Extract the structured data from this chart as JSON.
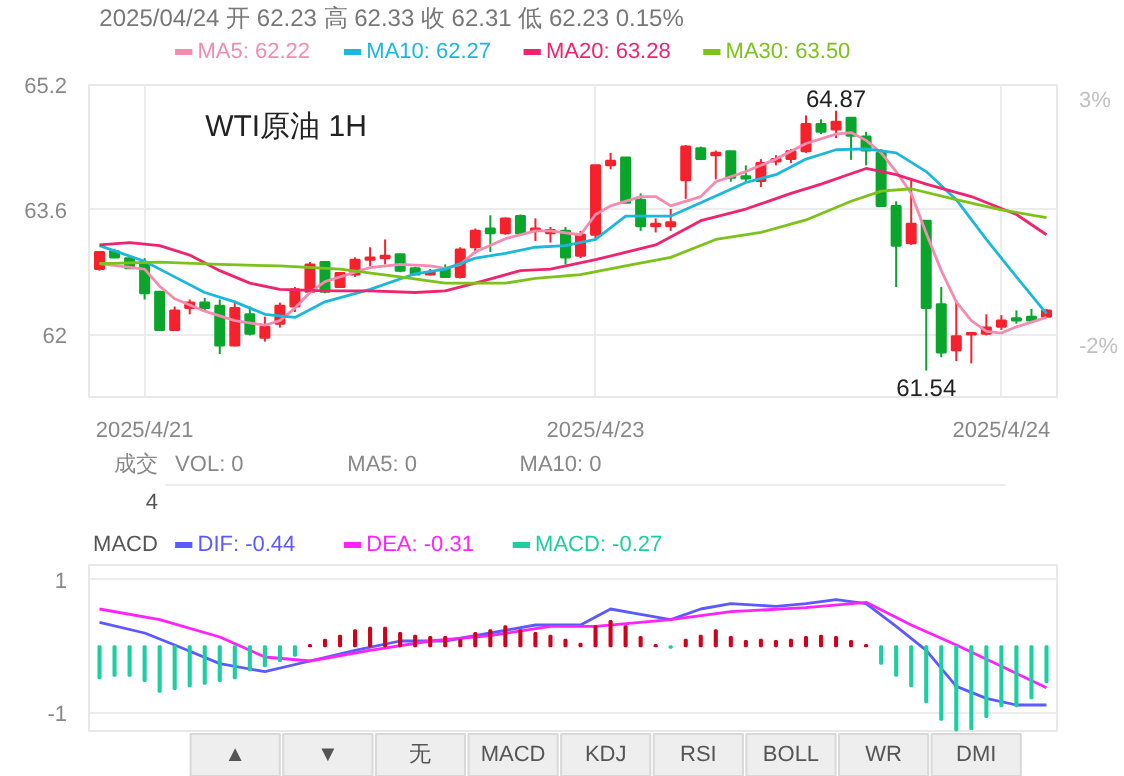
{
  "chart_data": [
    {
      "type": "candlestick",
      "title": "WTI原油 1H",
      "annotations": [
        "2025/04/24 开 62.23 高 62.33 收 62.31 低 62.23 0.15%",
        {
          "text": "64.87",
          "y": 64.87
        },
        {
          "text": "61.54",
          "y": 61.54
        }
      ],
      "categories": [
        null,
        null,
        null,
        "2025/4/21",
        null,
        null,
        null,
        null,
        null,
        null,
        null,
        null,
        null,
        null,
        null,
        null,
        null,
        null,
        null,
        null,
        null,
        null,
        null,
        null,
        null,
        null,
        null,
        null,
        null,
        null,
        null,
        null,
        null,
        "2025/4/23",
        null,
        null,
        null,
        null,
        null,
        null,
        null,
        null,
        null,
        null,
        null,
        null,
        null,
        null,
        null,
        null,
        null,
        null,
        null,
        null,
        null,
        null,
        null,
        null,
        null,
        null,
        "2025/4/24",
        null,
        null,
        null
      ],
      "ohlc": [
        [
          62.84,
          63.07,
          62.82,
          63.06
        ],
        [
          63.07,
          63.1,
          62.98,
          62.99
        ],
        [
          62.98,
          62.99,
          62.84,
          62.85
        ],
        [
          62.93,
          62.98,
          62.45,
          62.53
        ],
        [
          62.55,
          62.56,
          62.06,
          62.06
        ],
        [
          62.06,
          62.36,
          62.06,
          62.31
        ],
        [
          62.34,
          62.45,
          62.26,
          62.41
        ],
        [
          62.41,
          62.47,
          62.29,
          62.34
        ],
        [
          62.37,
          62.45,
          61.75,
          61.86
        ],
        [
          61.86,
          62.42,
          61.85,
          62.34
        ],
        [
          62.26,
          62.36,
          61.99,
          62.01
        ],
        [
          61.96,
          62.23,
          61.91,
          62.1
        ],
        [
          62.14,
          62.41,
          62.09,
          62.37
        ],
        [
          62.36,
          62.61,
          62.29,
          62.58
        ],
        [
          62.55,
          62.93,
          62.53,
          62.9
        ],
        [
          62.93,
          62.93,
          62.53,
          62.55
        ],
        [
          62.61,
          62.8,
          62.6,
          62.79
        ],
        [
          62.77,
          62.99,
          62.74,
          62.96
        ],
        [
          62.96,
          63.12,
          62.88,
          62.99
        ],
        [
          62.98,
          63.22,
          62.9,
          63.01
        ],
        [
          63.03,
          63.04,
          62.8,
          62.82
        ],
        [
          62.85,
          62.87,
          62.76,
          62.77
        ],
        [
          62.77,
          62.84,
          62.76,
          62.8
        ],
        [
          62.84,
          62.9,
          62.74,
          62.74
        ],
        [
          62.74,
          63.12,
          62.72,
          63.09
        ],
        [
          63.12,
          63.36,
          63.04,
          63.33
        ],
        [
          63.36,
          63.53,
          63.06,
          63.3
        ],
        [
          63.3,
          63.5,
          63.28,
          63.49
        ],
        [
          63.52,
          63.54,
          63.28,
          63.3
        ],
        [
          63.33,
          63.49,
          63.2,
          63.36
        ],
        [
          63.3,
          63.38,
          63.18,
          63.34
        ],
        [
          63.33,
          63.38,
          62.9,
          62.99
        ],
        [
          63.01,
          63.33,
          62.98,
          63.28
        ],
        [
          63.28,
          64.17,
          63.22,
          64.17
        ],
        [
          64.17,
          64.33,
          64.12,
          64.23
        ],
        [
          64.27,
          64.27,
          63.69,
          63.69
        ],
        [
          63.73,
          63.81,
          63.33,
          63.39
        ],
        [
          63.39,
          63.49,
          63.31,
          63.42
        ],
        [
          63.39,
          63.61,
          63.33,
          63.44
        ],
        [
          63.98,
          64.43,
          63.74,
          64.41
        ],
        [
          64.39,
          64.41,
          64.24,
          64.25
        ],
        [
          64.3,
          64.36,
          63.99,
          64.33
        ],
        [
          64.35,
          64.35,
          63.96,
          64.01
        ],
        [
          64.03,
          64.17,
          63.96,
          64.0
        ],
        [
          63.97,
          64.25,
          63.89,
          64.2
        ],
        [
          64.22,
          64.3,
          64.17,
          64.25
        ],
        [
          64.25,
          64.38,
          64.2,
          64.35
        ],
        [
          64.35,
          64.81,
          64.33,
          64.7
        ],
        [
          64.7,
          64.76,
          64.57,
          64.6
        ],
        [
          64.63,
          64.87,
          64.52,
          64.73
        ],
        [
          64.78,
          64.78,
          64.24,
          64.55
        ],
        [
          64.54,
          64.6,
          64.17,
          64.36
        ],
        [
          64.33,
          64.38,
          63.65,
          63.65
        ],
        [
          63.65,
          63.71,
          62.61,
          63.14
        ],
        [
          63.17,
          63.98,
          63.15,
          63.42
        ],
        [
          63.46,
          63.46,
          61.54,
          62.34
        ],
        [
          62.39,
          62.61,
          61.71,
          61.77
        ],
        [
          61.8,
          62.44,
          61.66,
          61.98
        ],
        [
          62.0,
          62.02,
          61.63,
          62.02
        ],
        [
          62.01,
          62.26,
          61.99,
          62.09
        ],
        [
          62.1,
          62.25,
          62.06,
          62.18
        ],
        [
          62.21,
          62.31,
          62.14,
          62.18
        ],
        [
          62.23,
          62.33,
          62.15,
          62.18
        ],
        [
          62.23,
          62.33,
          62.23,
          62.31
        ]
      ],
      "colors": [
        "#f5222d",
        "#0aa62c",
        "#0aa62c",
        "#0aa62c",
        "#0aa62c",
        "#f5222d",
        "#f5222d",
        "#0aa62c",
        "#0aa62c",
        "#f5222d",
        "#0aa62c",
        "#f5222d",
        "#f5222d",
        "#f5222d",
        "#f5222d",
        "#0aa62c",
        "#f5222d",
        "#f5222d",
        "#f5222d",
        "#f5222d",
        "#0aa62c",
        "#0aa62c",
        "#f5222d",
        "#0aa62c",
        "#f5222d",
        "#f5222d",
        "#0aa62c",
        "#f5222d",
        "#0aa62c",
        "#f5222d",
        "#f5222d",
        "#0aa62c",
        "#f5222d",
        "#f5222d",
        "#f5222d",
        "#0aa62c",
        "#0aa62c",
        "#f5222d",
        "#f5222d",
        "#f5222d",
        "#0aa62c",
        "#f5222d",
        "#0aa62c",
        "#0aa62c",
        "#f5222d",
        "#f5222d",
        "#f5222d",
        "#f5222d",
        "#0aa62c",
        "#f5222d",
        "#0aa62c",
        "#0aa62c",
        "#0aa62c",
        "#0aa62c",
        "#f5222d",
        "#0aa62c",
        "#0aa62c",
        "#f5222d",
        "#f5222d",
        "#f5222d",
        "#f5222d",
        "#0aa62c",
        "#0aa62c",
        "#f5222d"
      ],
      "series": [
        {
          "name": "MA5: 62.22",
          "type": "line",
          "color": "#f58bb0",
          "values": [
            62.91,
            null,
            null,
            62.84,
            62.62,
            62.46,
            null,
            62.3,
            null,
            62.18,
            null,
            62.12,
            62.18,
            62.34,
            62.54,
            62.68,
            62.74,
            null,
            62.86,
            null,
            62.9,
            null,
            62.88,
            62.85,
            62.9,
            63.06,
            null,
            63.23,
            null,
            63.33,
            63.33,
            null,
            63.28,
            63.54,
            63.65,
            null,
            63.77,
            63.77,
            63.65,
            null,
            63.77,
            63.96,
            null,
            64.09,
            null,
            64.25,
            null,
            64.45,
            null,
            64.57,
            64.59,
            64.49,
            64.33,
            64.09,
            63.81,
            63.3,
            62.82,
            62.42,
            62.18,
            62.04,
            62.02,
            62.1,
            null,
            62.22
          ]
        },
        {
          "name": "MA10: 62.27",
          "type": "line",
          "color": "#1cb8dc",
          "values": [
            63.14,
            null,
            null,
            62.94,
            null,
            62.74,
            null,
            62.54,
            null,
            62.42,
            null,
            62.26,
            null,
            62.22,
            null,
            62.42,
            null,
            null,
            62.58,
            null,
            null,
            62.78,
            null,
            62.84,
            null,
            62.98,
            null,
            63.04,
            null,
            63.12,
            null,
            63.14,
            null,
            63.22,
            null,
            63.52,
            null,
            null,
            63.52,
            null,
            63.69,
            null,
            null,
            63.95,
            null,
            64.05,
            null,
            64.25,
            null,
            64.37,
            null,
            64.38,
            null,
            64.33,
            null,
            64.09,
            null,
            63.73,
            null,
            63.22,
            null,
            62.74,
            null,
            62.27
          ]
        },
        {
          "name": "MA20: 63.28",
          "type": "line",
          "color": "#f0246e",
          "values": [
            63.15,
            null,
            63.18,
            null,
            63.14,
            null,
            63.02,
            null,
            62.82,
            null,
            62.66,
            null,
            62.58,
            null,
            null,
            62.56,
            null,
            null,
            62.56,
            null,
            null,
            62.54,
            null,
            62.56,
            null,
            62.66,
            null,
            null,
            62.82,
            null,
            62.84,
            null,
            null,
            62.96,
            null,
            null,
            null,
            63.15,
            null,
            null,
            63.46,
            null,
            null,
            63.61,
            null,
            null,
            63.81,
            null,
            63.93,
            null,
            null,
            64.13,
            null,
            64.05,
            null,
            63.93,
            null,
            null,
            63.77,
            null,
            null,
            63.54,
            null,
            63.28
          ]
        },
        {
          "name": "MA30: 63.50",
          "type": "line",
          "color": "#7cc21a",
          "values": [
            62.91,
            null,
            null,
            null,
            62.93,
            null,
            null,
            null,
            62.9,
            null,
            null,
            null,
            62.88,
            null,
            null,
            null,
            62.84,
            null,
            null,
            null,
            62.74,
            null,
            null,
            62.66,
            null,
            null,
            null,
            62.66,
            null,
            62.72,
            null,
            null,
            62.77,
            null,
            null,
            62.88,
            null,
            null,
            62.99,
            null,
            null,
            63.22,
            null,
            null,
            63.31,
            null,
            null,
            63.47,
            null,
            null,
            63.71,
            null,
            63.84,
            null,
            63.87,
            null,
            null,
            63.73,
            null,
            null,
            63.6,
            null,
            null,
            63.5
          ]
        }
      ],
      "ylim": [
        61.2,
        65.2
      ],
      "yticks": [
        62,
        63.6,
        65.2
      ],
      "y2lim": [
        -3.01,
        3.33
      ],
      "y2ticks": [
        {
          "value": 3,
          "label": "3%"
        },
        {
          "value": -2,
          "label": "-2%"
        }
      ],
      "grid": true,
      "legend": "top"
    },
    {
      "type": "other",
      "title": "成交",
      "annotations": [
        "VOL: 0",
        "MA5: 0",
        "MA10: 0",
        "4"
      ]
    },
    {
      "type": "bar",
      "title": "MACD",
      "categories": [
        null,
        null,
        null,
        null,
        null,
        null,
        null,
        null,
        null,
        null,
        null,
        null,
        null,
        null,
        null,
        null,
        null,
        null,
        null,
        null,
        null,
        null,
        null,
        null,
        null,
        null,
        null,
        null,
        null,
        null,
        null,
        null,
        null,
        null,
        null,
        null,
        null,
        null,
        null,
        null,
        null,
        null,
        null,
        null,
        null,
        null,
        null,
        null,
        null,
        null,
        null,
        null,
        null,
        null,
        null,
        null,
        null,
        null,
        null,
        null,
        null,
        null,
        null,
        null
      ],
      "series": [
        {
          "name": "DIF: -0.44",
          "type": "line",
          "color": "#5a5aff",
          "values": [
            0.36,
            null,
            null,
            0.2,
            null,
            0.02,
            null,
            null,
            -0.26,
            null,
            null,
            -0.38,
            null,
            null,
            -0.22,
            null,
            null,
            -0.06,
            null,
            null,
            0.08,
            null,
            null,
            0.08,
            null,
            null,
            0.2,
            null,
            null,
            0.32,
            null,
            null,
            0.32,
            null,
            0.56,
            null,
            0.48,
            null,
            0.4,
            null,
            0.56,
            null,
            0.64,
            null,
            null,
            0.6,
            null,
            0.64,
            null,
            0.7,
            null,
            0.64,
            null,
            0.3,
            null,
            -0.06,
            null,
            -0.6,
            null,
            -0.78,
            null,
            -0.88,
            null,
            -0.88
          ]
        },
        {
          "name": "DEA: -0.31",
          "type": "line",
          "color": "#ff22ff",
          "values": [
            0.56,
            null,
            null,
            null,
            0.4,
            null,
            null,
            null,
            0.14,
            null,
            null,
            -0.16,
            null,
            null,
            -0.22,
            null,
            null,
            null,
            -0.06,
            null,
            null,
            null,
            0.08,
            null,
            null,
            null,
            0.16,
            null,
            null,
            null,
            0.3,
            null,
            null,
            0.3,
            null,
            null,
            null,
            null,
            0.4,
            null,
            null,
            null,
            0.52,
            null,
            null,
            null,
            null,
            0.58,
            null,
            null,
            null,
            0.66,
            null,
            null,
            0.32,
            null,
            null,
            0.02,
            null,
            null,
            -0.3,
            null,
            null,
            -0.62
          ]
        },
        {
          "name": "MACD: -0.27",
          "type": "bar",
          "values": [
            -0.48,
            -0.44,
            -0.44,
            -0.52,
            -0.68,
            -0.64,
            -0.6,
            -0.56,
            -0.52,
            -0.48,
            -0.36,
            -0.3,
            -0.22,
            -0.14,
            0.02,
            0.1,
            0.16,
            0.24,
            0.28,
            0.28,
            0.2,
            0.16,
            0.14,
            0.14,
            0.1,
            0.2,
            0.24,
            0.3,
            0.24,
            0.2,
            0.16,
            0.1,
            0.04,
            0.3,
            0.38,
            0.3,
            0.14,
            0.02,
            -0.02,
            0.1,
            0.16,
            0.24,
            0.14,
            0.08,
            0.1,
            0.08,
            0.1,
            0.14,
            0.16,
            0.14,
            0.08,
            0.02,
            -0.26,
            -0.44,
            -0.6,
            -0.84,
            -1.1,
            -1.26,
            -1.24,
            -1.06,
            -0.9,
            -0.9,
            -0.78,
            -0.54
          ],
          "colors": [
            "#1ccfa0",
            "#1ccfa0",
            "#1ccfa0",
            "#1ccfa0",
            "#1ccfa0",
            "#1ccfa0",
            "#1ccfa0",
            "#1ccfa0",
            "#1ccfa0",
            "#1ccfa0",
            "#1ccfa0",
            "#1ccfa0",
            "#1ccfa0",
            "#1ccfa0",
            "#d0021b",
            "#d0021b",
            "#d0021b",
            "#d0021b",
            "#d0021b",
            "#d0021b",
            "#d0021b",
            "#d0021b",
            "#d0021b",
            "#d0021b",
            "#d0021b",
            "#d0021b",
            "#d0021b",
            "#d0021b",
            "#d0021b",
            "#d0021b",
            "#d0021b",
            "#d0021b",
            "#d0021b",
            "#d0021b",
            "#d0021b",
            "#d0021b",
            "#d0021b",
            "#d0021b",
            "#1ccfa0",
            "#d0021b",
            "#d0021b",
            "#d0021b",
            "#d0021b",
            "#d0021b",
            "#d0021b",
            "#d0021b",
            "#d0021b",
            "#d0021b",
            "#d0021b",
            "#d0021b",
            "#d0021b",
            "#d0021b",
            "#1ccfa0",
            "#1ccfa0",
            "#1ccfa0",
            "#1ccfa0",
            "#1ccfa0",
            "#1ccfa0",
            "#1ccfa0",
            "#1ccfa0",
            "#1ccfa0",
            "#1ccfa0",
            "#1ccfa0",
            "#1ccfa0"
          ]
        }
      ],
      "ylim": [
        -1.3,
        1.22
      ],
      "yticks": [
        1,
        -1
      ],
      "tick_labels": "y",
      "grid": "y",
      "legend": "top"
    },
    {
      "type": "other",
      "annotations": [
        "▲",
        "▼",
        "无",
        "MACD",
        "KDJ",
        "RSI",
        "BOLL",
        "WR",
        "DMI"
      ]
    }
  ]
}
